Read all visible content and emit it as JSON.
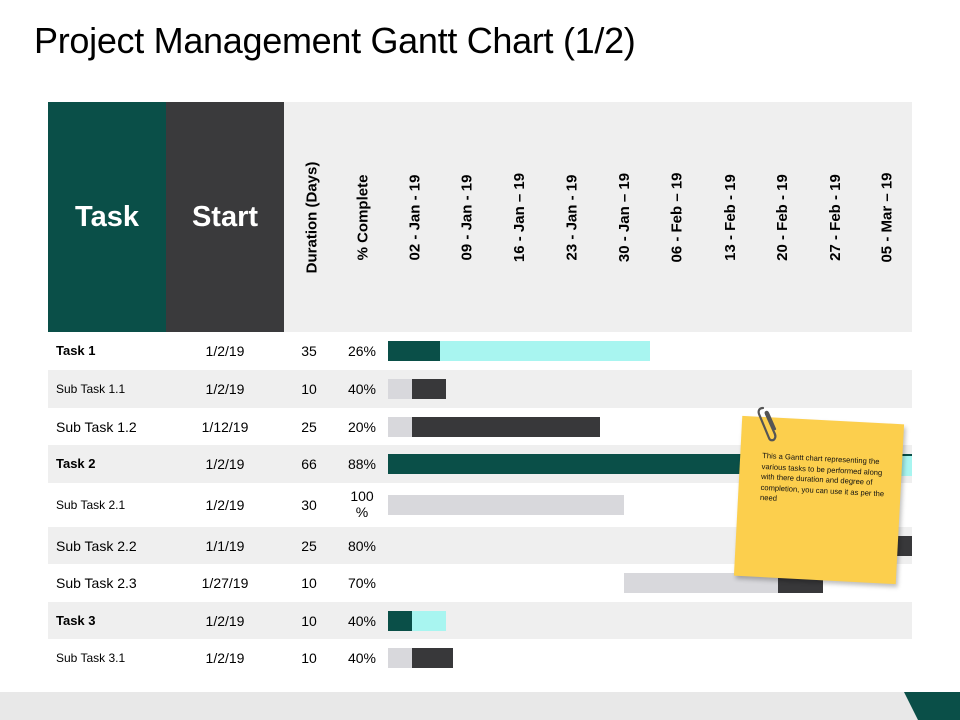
{
  "title": "Project Management Gantt Chart (1/2)",
  "columns": {
    "task": "Task",
    "start": "Start",
    "duration": "Duration (Days)",
    "complete": "% Complete"
  },
  "weeks": [
    "02 - Jan - 19",
    "09 - Jan - 19",
    "16 - Jan – 19",
    "23 - Jan - 19",
    "30 - Jan – 19",
    "06 - Feb – 19",
    "13 - Feb - 19",
    "20 - Feb - 19",
    "27 - Feb - 19",
    "05 - Mar – 19"
  ],
  "colors": {
    "task_header": "#0a4f48",
    "start_header": "#3a3a3c",
    "task_done": "#0a4f48",
    "task_remaining": "#a8f5f0",
    "subtask_done": "#38383a",
    "subtask_remaining": "#d8d8dc",
    "note": "#fccf4d"
  },
  "note": "This a Gantt chart representing the various tasks to be performed along with there duration and degree of completion, you can use it as per the need",
  "chart_data": {
    "type": "gantt",
    "x_axis": "weeks",
    "rows": [
      {
        "name": "Task 1",
        "level": "task",
        "start": "1/2/19",
        "duration": 35,
        "complete": "26%",
        "bar_start_week": 0.0,
        "done_weeks": 1.0,
        "remaining_weeks": 4.0
      },
      {
        "name": "Sub Task 1.1",
        "level": "subtask",
        "start": "1/2/19",
        "duration": 10,
        "complete": "40%",
        "bar_start_week": 0.0,
        "remaining_weeks": 0.45,
        "done_weeks": 0.65
      },
      {
        "name": "Sub Task 1.2",
        "level": "subtask",
        "start": "1/12/19",
        "duration": 25,
        "complete": "20%",
        "bar_start_week": 0.0,
        "remaining_weeks": 0.45,
        "done_weeks": 3.6
      },
      {
        "name": "Task 2",
        "level": "task",
        "start": "1/2/19",
        "duration": 66,
        "complete": "88%",
        "bar_start_week": 0.0,
        "done_weeks": 10.0,
        "remaining_weeks": 0.0
      },
      {
        "name": "Sub Task 2.1",
        "level": "subtask",
        "start": "1/2/19",
        "duration": 30,
        "complete": "100 %",
        "bar_start_week": 0.0,
        "remaining_weeks": 4.5,
        "done_weeks": 0.0
      },
      {
        "name": "Sub Task 2.2",
        "level": "subtask",
        "start": "1/1/19",
        "duration": 25,
        "complete": "80%",
        "bar_start_week": 9.7,
        "remaining_weeks": 0.0,
        "done_weeks": 0.3
      },
      {
        "name": "Sub Task 2.3",
        "level": "subtask",
        "start": "1/27/19",
        "duration": 10,
        "complete": "70%",
        "bar_start_week": 4.5,
        "remaining_weeks": 2.95,
        "done_weeks": 0.85
      },
      {
        "name": "Task 3",
        "level": "task",
        "start": "1/2/19",
        "duration": 10,
        "complete": "40%",
        "bar_start_week": 0.0,
        "done_weeks": 0.45,
        "remaining_weeks": 0.65
      },
      {
        "name": "Sub Task 3.1",
        "level": "subtask",
        "start": "1/2/19",
        "duration": 10,
        "complete": "40%",
        "bar_start_week": 0.0,
        "remaining_weeks": 0.45,
        "done_weeks": 0.8
      }
    ]
  }
}
